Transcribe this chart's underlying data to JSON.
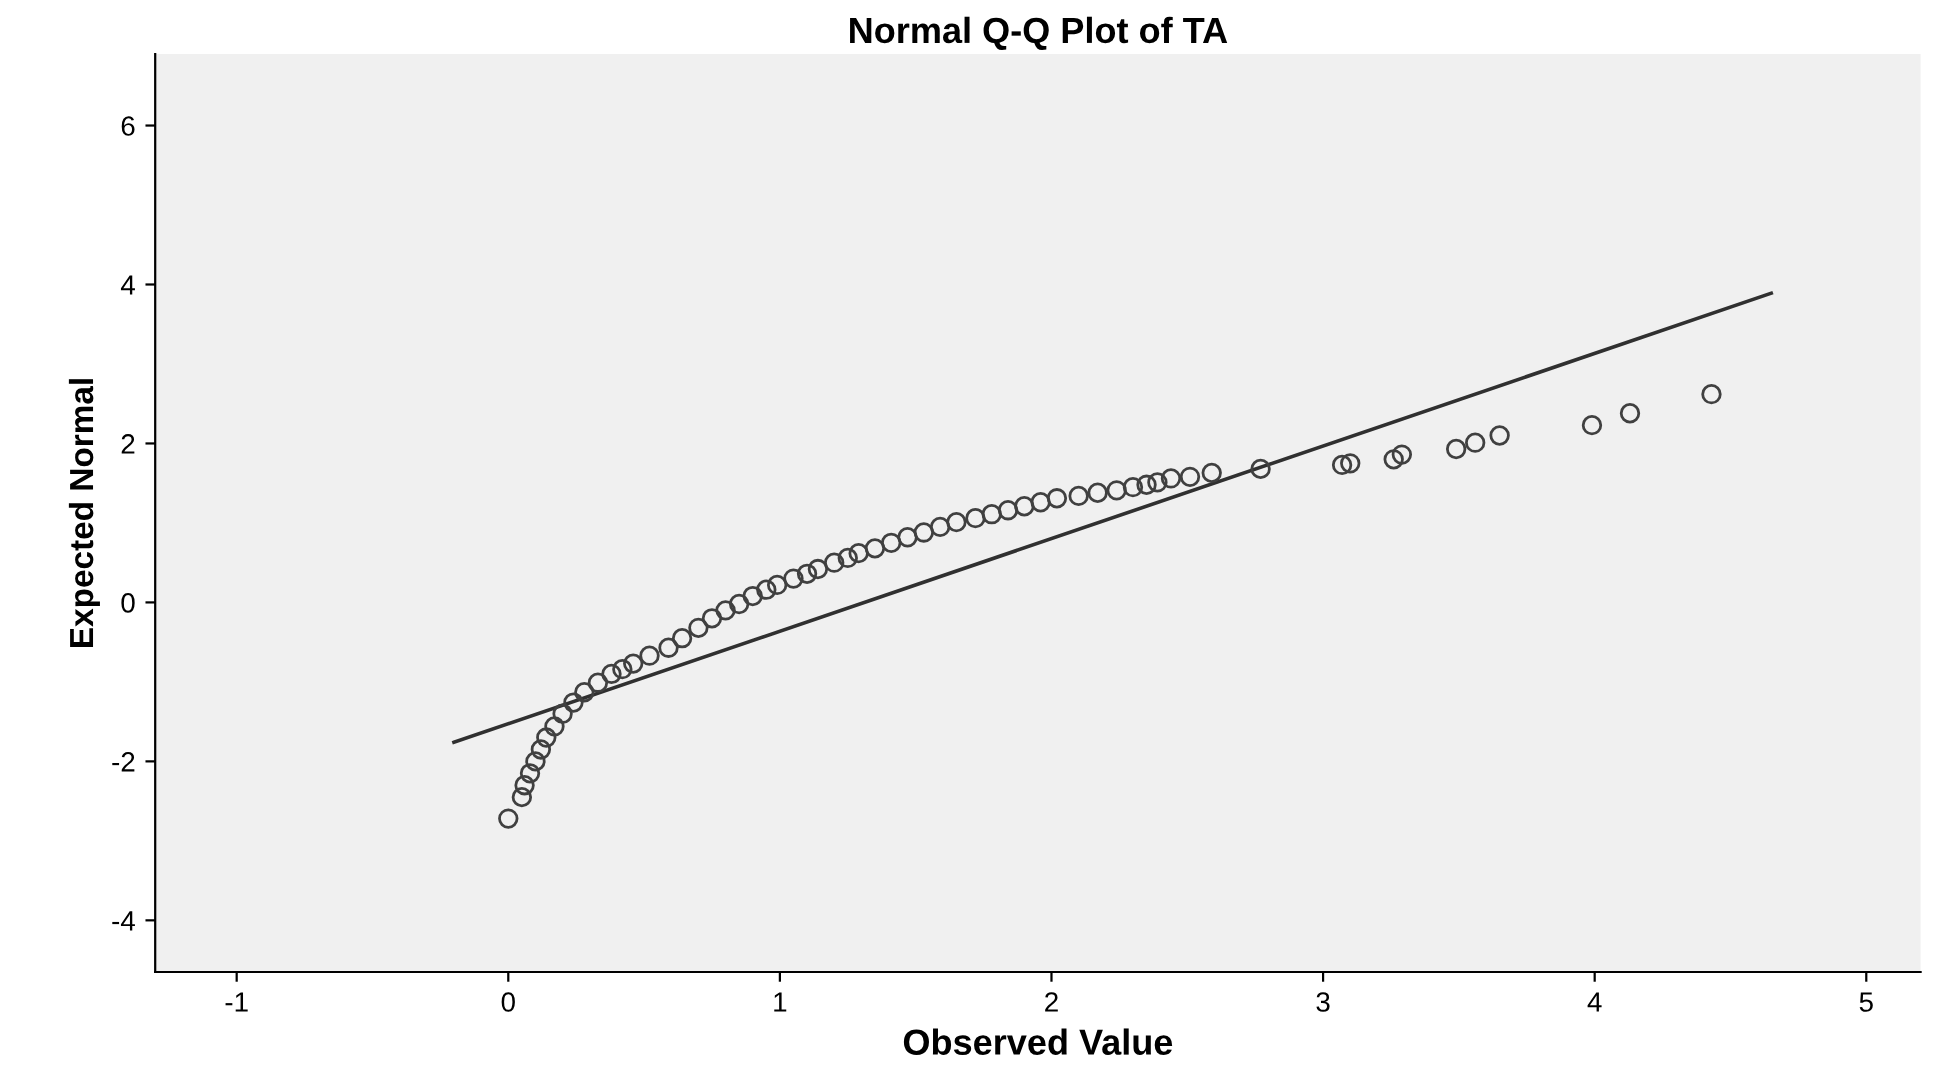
{
  "chart_data": {
    "type": "scatter",
    "title": "Normal Q-Q Plot of TA",
    "xlabel": "Observed Value",
    "ylabel": "Expected Normal",
    "xlim": [
      -1.3,
      5.2
    ],
    "ylim": [
      -4.65,
      6.9
    ],
    "xticks": [
      -1,
      0,
      1,
      2,
      3,
      4,
      5
    ],
    "yticks": [
      -4,
      -2,
      0,
      2,
      4,
      6
    ],
    "grid": false,
    "legend": false,
    "marker": "circle",
    "series": [
      {
        "type": "scatter",
        "color": "#404040",
        "x": [
          0.0,
          0.05,
          0.06,
          0.08,
          0.1,
          0.12,
          0.14,
          0.17,
          0.2,
          0.24,
          0.28,
          0.33,
          0.38,
          0.42,
          0.46,
          0.52,
          0.59,
          0.64,
          0.7,
          0.75,
          0.8,
          0.85,
          0.9,
          0.95,
          0.99,
          1.05,
          1.1,
          1.14,
          1.2,
          1.25,
          1.29,
          1.35,
          1.41,
          1.47,
          1.53,
          1.59,
          1.65,
          1.72,
          1.78,
          1.84,
          1.9,
          1.96,
          2.02,
          2.1,
          2.17,
          2.24,
          2.3,
          2.35,
          2.39,
          2.44,
          2.51,
          2.59,
          2.77,
          3.07,
          3.1,
          3.26,
          3.29,
          3.49,
          3.56,
          3.65,
          3.99,
          4.13,
          4.43
        ],
        "values": [
          -2.72,
          -2.45,
          -2.3,
          -2.15,
          -2.0,
          -1.85,
          -1.7,
          -1.56,
          -1.4,
          -1.26,
          -1.13,
          -1.01,
          -0.9,
          -0.84,
          -0.77,
          -0.67,
          -0.57,
          -0.45,
          -0.32,
          -0.2,
          -0.1,
          -0.02,
          0.08,
          0.16,
          0.22,
          0.3,
          0.36,
          0.42,
          0.5,
          0.56,
          0.62,
          0.68,
          0.75,
          0.82,
          0.88,
          0.95,
          1.01,
          1.06,
          1.11,
          1.16,
          1.21,
          1.26,
          1.31,
          1.34,
          1.38,
          1.41,
          1.45,
          1.48,
          1.51,
          1.56,
          1.58,
          1.63,
          1.68,
          1.73,
          1.75,
          1.8,
          1.86,
          1.93,
          2.01,
          2.1,
          2.23,
          2.38,
          2.62
        ]
      },
      {
        "type": "line",
        "color": "#303030",
        "marker": "none",
        "line_style": "solid",
        "x": [
          -0.2,
          4.65
        ],
        "values": [
          -1.76,
          3.89
        ]
      }
    ]
  }
}
